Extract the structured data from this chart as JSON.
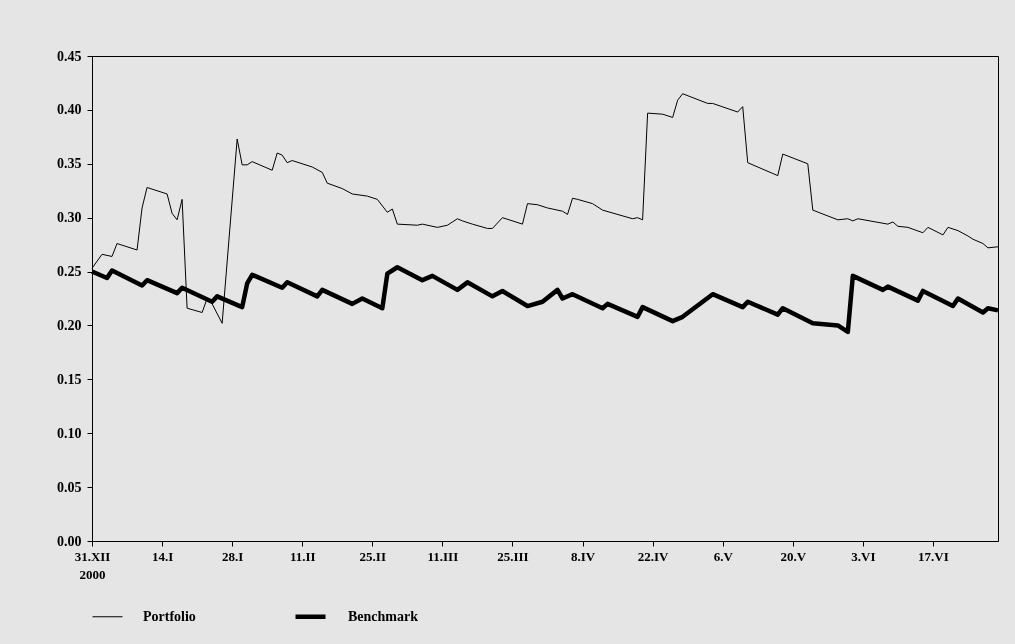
{
  "chart_data": {
    "type": "line",
    "xlim": [
      "2000-12-31",
      "2001-06-30"
    ],
    "xticks": [
      {
        "value": "2000-12-31",
        "label": "31.XII\n2000"
      },
      {
        "value": "2001-01-14",
        "label": "14.I"
      },
      {
        "value": "2001-01-28",
        "label": "28.I"
      },
      {
        "value": "2001-02-11",
        "label": "11.II"
      },
      {
        "value": "2001-02-25",
        "label": "25.II"
      },
      {
        "value": "2001-03-11",
        "label": "11.III"
      },
      {
        "value": "2001-03-25",
        "label": "25.III"
      },
      {
        "value": "2001-04-08",
        "label": "8.IV"
      },
      {
        "value": "2001-04-22",
        "label": "22.IV"
      },
      {
        "value": "2001-05-06",
        "label": "6.V"
      },
      {
        "value": "2001-05-20",
        "label": "20.V"
      },
      {
        "value": "2001-06-03",
        "label": "3.VI"
      },
      {
        "value": "2001-06-17",
        "label": "17.VI"
      }
    ],
    "ylim": [
      0,
      0.45
    ],
    "yticks": [
      {
        "value": 0,
        "label": "0.00"
      },
      {
        "value": 0.05,
        "label": "0.05"
      },
      {
        "value": 0.1,
        "label": "0.10"
      },
      {
        "value": 0.15,
        "label": "0.15"
      },
      {
        "value": 0.2,
        "label": "0.20"
      },
      {
        "value": 0.25,
        "label": "0.25"
      },
      {
        "value": 0.3,
        "label": "0.30"
      },
      {
        "value": 0.35,
        "label": "0.35"
      },
      {
        "value": 0.4,
        "label": "0.40"
      },
      {
        "value": 0.45,
        "label": "0.45"
      }
    ],
    "grid": false,
    "legend": "bottom",
    "marker": "none",
    "line_style": "solid",
    "series": [
      {
        "name": "Portfolio",
        "color": "#000000",
        "x": [
          "2000-12-31",
          "2001-01-02",
          "2001-01-04",
          "2001-01-05",
          "2001-01-09",
          "2001-01-10",
          "2001-01-11",
          "2001-01-15",
          "2001-01-16",
          "2001-01-17",
          "2001-01-18",
          "2001-01-19",
          "2001-01-22",
          "2001-01-23",
          "2001-01-24",
          "2001-01-26",
          "2001-01-29",
          "2001-01-30",
          "2001-01-31",
          "2001-02-01",
          "2001-02-05",
          "2001-02-06",
          "2001-02-07",
          "2001-02-08",
          "2001-02-09",
          "2001-02-13",
          "2001-02-15",
          "2001-02-16",
          "2001-02-19",
          "2001-02-21",
          "2001-02-24",
          "2001-02-26",
          "2001-02-28",
          "2001-03-01",
          "2001-03-02",
          "2001-03-06",
          "2001-03-07",
          "2001-03-10",
          "2001-03-12",
          "2001-03-14",
          "2001-03-15",
          "2001-03-17",
          "2001-03-20",
          "2001-03-21",
          "2001-03-23",
          "2001-03-27",
          "2001-03-28",
          "2001-03-30",
          "2001-04-01",
          "2001-04-04",
          "2001-04-05",
          "2001-04-06",
          "2001-04-07",
          "2001-04-10",
          "2001-04-12",
          "2001-04-18",
          "2001-04-19",
          "2001-04-20",
          "2001-04-21",
          "2001-04-24",
          "2001-04-26",
          "2001-04-27",
          "2001-04-28",
          "2001-05-03",
          "2001-05-04",
          "2001-05-09",
          "2001-05-10",
          "2001-05-11",
          "2001-05-16",
          "2001-05-17",
          "2001-05-18",
          "2001-05-23",
          "2001-05-24",
          "2001-05-29",
          "2001-05-31",
          "2001-06-01",
          "2001-06-02",
          "2001-06-08",
          "2001-06-09",
          "2001-06-10",
          "2001-06-12",
          "2001-06-15",
          "2001-06-16",
          "2001-06-19",
          "2001-06-20",
          "2001-06-22",
          "2001-06-24",
          "2001-06-25",
          "2001-06-27",
          "2001-06-28",
          "2001-06-30"
        ],
        "values": [
          0.253,
          0.266,
          0.264,
          0.276,
          0.27,
          0.309,
          0.328,
          0.322,
          0.304,
          0.298,
          0.317,
          0.216,
          0.212,
          0.225,
          0.22,
          0.202,
          0.373,
          0.349,
          0.349,
          0.352,
          0.344,
          0.36,
          0.358,
          0.351,
          0.353,
          0.347,
          0.342,
          0.332,
          0.327,
          0.322,
          0.32,
          0.317,
          0.305,
          0.308,
          0.294,
          0.293,
          0.294,
          0.291,
          0.293,
          0.299,
          0.297,
          0.294,
          0.29,
          0.29,
          0.3,
          0.294,
          0.313,
          0.312,
          0.309,
          0.306,
          0.303,
          0.318,
          0.317,
          0.313,
          0.307,
          0.299,
          0.3,
          0.298,
          0.397,
          0.396,
          0.393,
          0.409,
          0.415,
          0.406,
          0.406,
          0.398,
          0.403,
          0.351,
          0.341,
          0.339,
          0.359,
          0.35,
          0.307,
          0.298,
          0.299,
          0.297,
          0.299,
          0.294,
          0.296,
          0.292,
          0.291,
          0.286,
          0.291,
          0.284,
          0.291,
          0.288,
          0.283,
          0.28,
          0.276,
          0.272,
          0.273
        ]
      },
      {
        "name": "Benchmark",
        "color": "#000000",
        "x": [
          "2000-12-31",
          "2001-01-03",
          "2001-01-04",
          "2001-01-10",
          "2001-01-11",
          "2001-01-17",
          "2001-01-18",
          "2001-01-24",
          "2001-01-25",
          "2001-01-30",
          "2001-01-31",
          "2001-02-01",
          "2001-02-07",
          "2001-02-08",
          "2001-02-14",
          "2001-02-15",
          "2001-02-21",
          "2001-02-23",
          "2001-02-27",
          "2001-02-28",
          "2001-03-02",
          "2001-03-07",
          "2001-03-09",
          "2001-03-14",
          "2001-03-16",
          "2001-03-21",
          "2001-03-23",
          "2001-03-28",
          "2001-03-31",
          "2001-04-03",
          "2001-04-04",
          "2001-04-06",
          "2001-04-12",
          "2001-04-13",
          "2001-04-19",
          "2001-04-20",
          "2001-04-26",
          "2001-04-28",
          "2001-05-04",
          "2001-05-10",
          "2001-05-11",
          "2001-05-17",
          "2001-05-18",
          "2001-05-24",
          "2001-05-29",
          "2001-05-31",
          "2001-06-01",
          "2001-06-07",
          "2001-06-08",
          "2001-06-14",
          "2001-06-15",
          "2001-06-21",
          "2001-06-22",
          "2001-06-27",
          "2001-06-28",
          "2001-06-30"
        ],
        "values": [
          0.25,
          0.244,
          0.251,
          0.237,
          0.242,
          0.23,
          0.235,
          0.222,
          0.227,
          0.217,
          0.239,
          0.247,
          0.235,
          0.24,
          0.227,
          0.233,
          0.22,
          0.225,
          0.216,
          0.248,
          0.254,
          0.242,
          0.246,
          0.233,
          0.24,
          0.227,
          0.232,
          0.218,
          0.222,
          0.233,
          0.225,
          0.229,
          0.216,
          0.22,
          0.208,
          0.217,
          0.204,
          0.208,
          0.229,
          0.217,
          0.222,
          0.21,
          0.216,
          0.202,
          0.2,
          0.194,
          0.246,
          0.233,
          0.236,
          0.223,
          0.232,
          0.218,
          0.225,
          0.212,
          0.216,
          0.214
        ]
      }
    ]
  }
}
